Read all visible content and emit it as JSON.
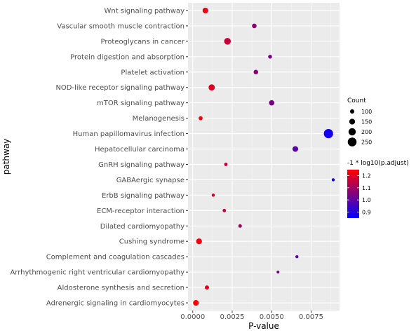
{
  "chart_data": {
    "type": "scatter",
    "xlabel": "P-value",
    "ylabel": "pathway",
    "xlim": [
      -0.0003,
      0.0093
    ],
    "x_ticks": [
      0.0,
      0.0025,
      0.005,
      0.0075
    ],
    "x_tick_labels": [
      "0.0000",
      "0.0025",
      "0.0050",
      "0.0075"
    ],
    "grid": true,
    "legend_placement": "right",
    "size_legend": {
      "title": "Count",
      "values": [
        100,
        150,
        200,
        250
      ],
      "labels": [
        "100",
        "150",
        "200",
        "250"
      ]
    },
    "color_legend": {
      "title": "-1 * log10(p.adjust)",
      "min": 0.85,
      "max": 1.25,
      "ticks": [
        0.9,
        1.0,
        1.1,
        1.2
      ],
      "tick_labels": [
        "0.9",
        "1.0",
        "1.1",
        "1.2"
      ],
      "low_color": "#0000ff",
      "high_color": "#ff0000"
    },
    "points": [
      {
        "pathway": "Wnt signaling pathway",
        "p_value": 0.0008,
        "count": 145,
        "color_value": 1.22
      },
      {
        "pathway": "Vascular smooth muscle contraction",
        "p_value": 0.0039,
        "count": 110,
        "color_value": 1.07
      },
      {
        "pathway": "Proteoglycans in cancer",
        "p_value": 0.0022,
        "count": 180,
        "color_value": 1.16
      },
      {
        "pathway": "Protein digestion and absorption",
        "p_value": 0.0049,
        "count": 85,
        "color_value": 1.04
      },
      {
        "pathway": "Platelet activation",
        "p_value": 0.004,
        "count": 110,
        "color_value": 1.07
      },
      {
        "pathway": "NOD-like receptor signaling pathway",
        "p_value": 0.0012,
        "count": 165,
        "color_value": 1.2
      },
      {
        "pathway": "mTOR signaling pathway",
        "p_value": 0.005,
        "count": 135,
        "color_value": 1.04
      },
      {
        "pathway": "Melanogenesis",
        "p_value": 0.0005,
        "count": 90,
        "color_value": 1.23
      },
      {
        "pathway": "Human papillomavirus infection",
        "p_value": 0.0086,
        "count": 265,
        "color_value": 0.88
      },
      {
        "pathway": "Hepatocellular carcinoma",
        "p_value": 0.0065,
        "count": 145,
        "color_value": 0.99
      },
      {
        "pathway": "GnRH signaling pathway",
        "p_value": 0.0021,
        "count": 70,
        "color_value": 1.16
      },
      {
        "pathway": "GABAergic synapse",
        "p_value": 0.0089,
        "count": 60,
        "color_value": 0.87
      },
      {
        "pathway": "ErbB signaling pathway",
        "p_value": 0.0013,
        "count": 60,
        "color_value": 1.19
      },
      {
        "pathway": "ECM-receptor interaction",
        "p_value": 0.002,
        "count": 70,
        "color_value": 1.17
      },
      {
        "pathway": "Dilated cardiomyopathy",
        "p_value": 0.003,
        "count": 75,
        "color_value": 1.11
      },
      {
        "pathway": "Cushing syndrome",
        "p_value": 0.0004,
        "count": 150,
        "color_value": 1.23
      },
      {
        "pathway": "Complement and coagulation cascades",
        "p_value": 0.0066,
        "count": 60,
        "color_value": 0.99
      },
      {
        "pathway": "Arrhythmogenic right ventricular cardiomyopathy",
        "p_value": 0.0054,
        "count": 50,
        "color_value": 1.03
      },
      {
        "pathway": "Aldosterone synthesis and secretion",
        "p_value": 0.0009,
        "count": 95,
        "color_value": 1.21
      },
      {
        "pathway": "Adrenergic signaling in cardiomyocytes",
        "p_value": 0.0002,
        "count": 145,
        "color_value": 1.24
      }
    ]
  }
}
